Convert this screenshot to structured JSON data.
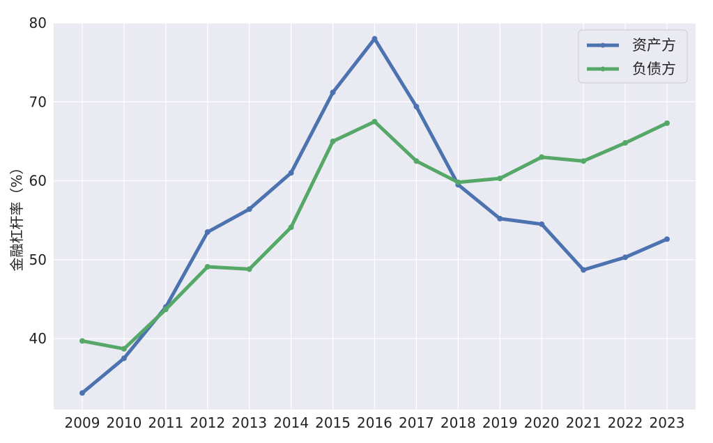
{
  "chart_data": {
    "type": "line",
    "title": "",
    "xlabel": "",
    "ylabel": "金融杠杆率（%）",
    "x": [
      2009,
      2010,
      2011,
      2012,
      2013,
      2014,
      2015,
      2016,
      2017,
      2018,
      2019,
      2020,
      2021,
      2022,
      2023
    ],
    "x_tick_labels": [
      "2009",
      "2010",
      "2011",
      "2012",
      "2013",
      "2014",
      "2015",
      "2016",
      "2017",
      "2018",
      "2019",
      "2020",
      "2021",
      "2022",
      "2023"
    ],
    "ylim": [
      31,
      80
    ],
    "y_ticks": [
      40,
      50,
      60,
      70,
      80
    ],
    "y_tick_labels": [
      "40",
      "50",
      "60",
      "70",
      "80"
    ],
    "grid": true,
    "legend_position": "top-right",
    "series": [
      {
        "name": "资产方",
        "color": "#4c72b0",
        "values": [
          33.1,
          37.5,
          44.0,
          53.5,
          56.4,
          61.0,
          71.2,
          78.0,
          69.4,
          59.5,
          55.2,
          54.5,
          48.7,
          50.3,
          52.6
        ]
      },
      {
        "name": "负债方",
        "color": "#55a868",
        "values": [
          39.7,
          38.7,
          43.7,
          49.1,
          48.8,
          54.1,
          65.0,
          67.5,
          62.5,
          59.8,
          60.3,
          63.0,
          62.5,
          64.8,
          67.3
        ]
      }
    ]
  }
}
